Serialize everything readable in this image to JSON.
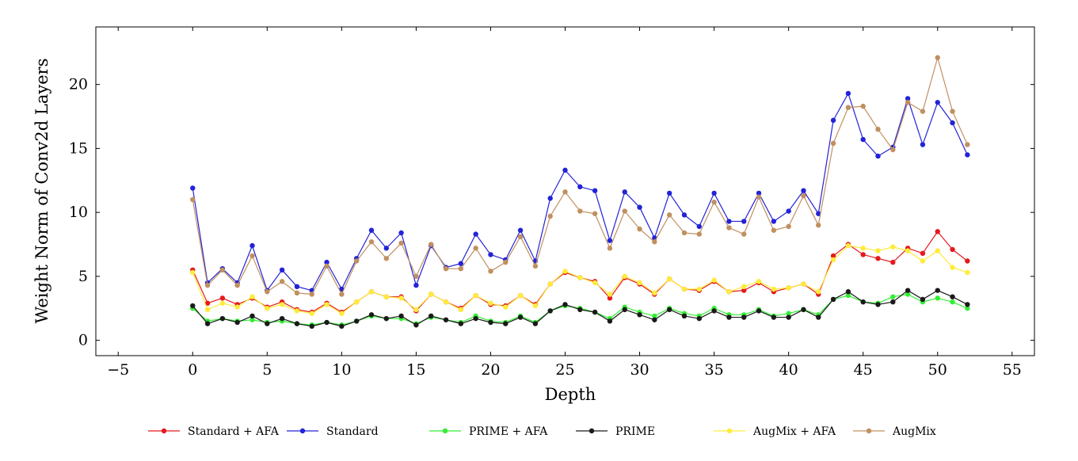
{
  "chart_data": {
    "type": "line",
    "title": "",
    "xlabel": "Depth",
    "ylabel": "Weight Norm of Conv2d Layers",
    "xlim": [
      -6.5,
      56.5
    ],
    "ylim": [
      -1.2,
      24.5
    ],
    "xticks": [
      -5,
      0,
      5,
      10,
      15,
      20,
      25,
      30,
      35,
      40,
      45,
      50,
      55
    ],
    "xtick_labels": [
      "−5",
      "0",
      "5",
      "10",
      "15",
      "20",
      "25",
      "30",
      "35",
      "40",
      "45",
      "50",
      "55"
    ],
    "yticks": [
      0,
      5,
      10,
      15,
      20
    ],
    "ytick_labels": [
      "0",
      "5",
      "10",
      "15",
      "20"
    ],
    "grid": false,
    "legend_position": "bottom",
    "x": [
      0,
      1,
      2,
      3,
      4,
      5,
      6,
      7,
      8,
      9,
      10,
      11,
      12,
      13,
      14,
      15,
      16,
      17,
      18,
      19,
      20,
      21,
      22,
      23,
      24,
      25,
      26,
      27,
      28,
      29,
      30,
      31,
      32,
      33,
      34,
      35,
      36,
      37,
      38,
      39,
      40,
      41,
      42,
      43,
      44,
      45,
      46,
      47,
      48,
      49,
      50,
      51,
      52
    ],
    "series": [
      {
        "name": "Standard + AFA",
        "color": "#e41a1c",
        "values": [
          5.5,
          2.9,
          3.3,
          2.8,
          3.3,
          2.6,
          3.0,
          2.4,
          2.2,
          2.9,
          2.2,
          3.0,
          3.8,
          3.4,
          3.4,
          2.3,
          3.6,
          3.0,
          2.5,
          3.5,
          2.8,
          2.7,
          3.5,
          2.8,
          4.4,
          5.3,
          4.9,
          4.6,
          3.3,
          4.9,
          4.4,
          3.6,
          4.8,
          4.0,
          3.9,
          4.6,
          3.8,
          3.9,
          4.5,
          3.8,
          4.1,
          4.4,
          3.6,
          6.6,
          7.5,
          6.7,
          6.4,
          6.1,
          7.2,
          6.8,
          8.5,
          7.1,
          6.2
        ]
      },
      {
        "name": "Standard",
        "color": "#2323d8",
        "values": [
          11.9,
          4.5,
          5.6,
          4.5,
          7.4,
          3.9,
          5.5,
          4.2,
          3.9,
          6.1,
          4.0,
          6.4,
          8.6,
          7.2,
          8.4,
          4.3,
          7.4,
          5.7,
          6.0,
          8.3,
          6.7,
          6.3,
          8.6,
          6.2,
          11.1,
          13.3,
          12.0,
          11.7,
          7.8,
          11.6,
          10.4,
          8.0,
          11.5,
          9.8,
          8.9,
          11.5,
          9.3,
          9.3,
          11.5,
          9.3,
          10.1,
          11.7,
          9.9,
          17.2,
          19.3,
          15.7,
          14.4,
          15.1,
          18.9,
          15.3,
          18.6,
          17.0,
          14.5
        ]
      },
      {
        "name": "PRIME + AFA",
        "color": "#33ee33",
        "values": [
          2.5,
          1.5,
          1.7,
          1.5,
          1.6,
          1.4,
          1.5,
          1.3,
          1.2,
          1.4,
          1.2,
          1.5,
          1.9,
          1.7,
          1.7,
          1.3,
          1.8,
          1.6,
          1.4,
          1.9,
          1.5,
          1.4,
          1.9,
          1.4,
          2.3,
          2.7,
          2.5,
          2.2,
          1.7,
          2.6,
          2.2,
          1.9,
          2.5,
          2.1,
          1.9,
          2.5,
          2.0,
          2.0,
          2.4,
          1.9,
          2.1,
          2.4,
          2.0,
          3.2,
          3.5,
          3.0,
          2.9,
          3.4,
          3.6,
          3.0,
          3.3,
          3.0,
          2.5
        ]
      },
      {
        "name": "PRIME",
        "color": "#1a1a1a",
        "values": [
          2.7,
          1.3,
          1.7,
          1.4,
          1.9,
          1.3,
          1.7,
          1.3,
          1.1,
          1.4,
          1.1,
          1.5,
          2.0,
          1.7,
          1.9,
          1.2,
          1.9,
          1.6,
          1.3,
          1.7,
          1.4,
          1.3,
          1.8,
          1.3,
          2.3,
          2.8,
          2.4,
          2.2,
          1.5,
          2.4,
          2.0,
          1.6,
          2.4,
          1.9,
          1.7,
          2.3,
          1.8,
          1.8,
          2.3,
          1.8,
          1.8,
          2.4,
          1.8,
          3.2,
          3.8,
          3.0,
          2.8,
          3.0,
          3.9,
          3.2,
          3.9,
          3.4,
          2.8
        ]
      },
      {
        "name": "AugMix + AFA",
        "color": "#ffeb3b",
        "values": [
          5.3,
          2.4,
          2.9,
          2.6,
          3.4,
          2.5,
          2.8,
          2.3,
          2.1,
          2.8,
          2.1,
          3.0,
          3.8,
          3.4,
          3.3,
          2.4,
          3.6,
          3.0,
          2.4,
          3.5,
          2.9,
          2.6,
          3.5,
          2.7,
          4.4,
          5.4,
          4.9,
          4.5,
          3.6,
          5.0,
          4.5,
          3.7,
          4.8,
          4.0,
          4.0,
          4.7,
          3.8,
          4.2,
          4.6,
          4.0,
          4.1,
          4.4,
          3.8,
          6.3,
          7.4,
          7.2,
          7.0,
          7.3,
          7.0,
          6.2,
          7.0,
          5.7,
          5.3
        ]
      },
      {
        "name": "AugMix",
        "color": "#c09060",
        "values": [
          11.0,
          4.3,
          5.5,
          4.3,
          6.6,
          3.8,
          4.6,
          3.7,
          3.6,
          5.8,
          3.6,
          6.2,
          7.7,
          6.4,
          7.6,
          5.0,
          7.5,
          5.6,
          5.6,
          7.2,
          5.4,
          6.1,
          8.1,
          5.8,
          9.7,
          11.6,
          10.1,
          9.9,
          7.2,
          10.1,
          8.7,
          7.7,
          9.8,
          8.4,
          8.3,
          10.8,
          8.8,
          8.3,
          11.2,
          8.6,
          8.9,
          11.3,
          9.0,
          15.4,
          18.2,
          18.3,
          16.5,
          14.9,
          18.6,
          17.9,
          22.1,
          17.9,
          15.3
        ]
      }
    ]
  }
}
